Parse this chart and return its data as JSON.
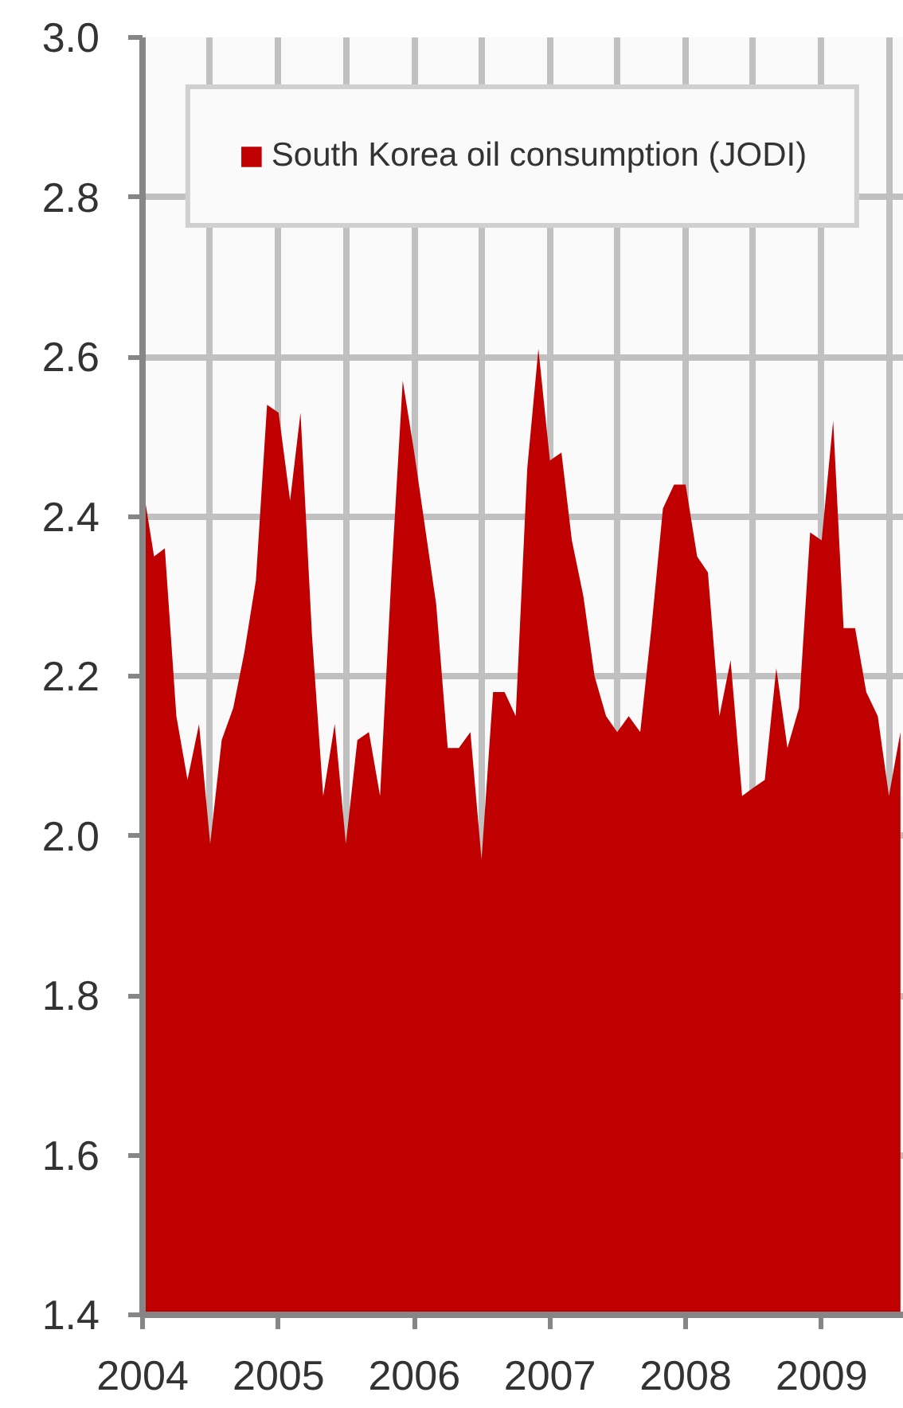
{
  "chart_data": {
    "type": "area",
    "x": [
      "2004-01",
      "2004-02",
      "2004-03",
      "2004-04",
      "2004-05",
      "2004-06",
      "2004-07",
      "2004-08",
      "2004-09",
      "2004-10",
      "2004-11",
      "2004-12",
      "2005-01",
      "2005-02",
      "2005-03",
      "2005-04",
      "2005-05",
      "2005-06",
      "2005-07",
      "2005-08",
      "2005-09",
      "2005-10",
      "2005-11",
      "2005-12",
      "2006-01",
      "2006-02",
      "2006-03",
      "2006-04",
      "2006-05",
      "2006-06",
      "2006-07",
      "2006-08",
      "2006-09",
      "2006-10",
      "2006-11",
      "2006-12",
      "2007-01",
      "2007-02",
      "2007-03",
      "2007-04",
      "2007-05",
      "2007-06",
      "2007-07",
      "2007-08",
      "2007-09",
      "2007-10",
      "2007-11",
      "2007-12",
      "2008-01",
      "2008-02",
      "2008-03",
      "2008-04",
      "2008-05",
      "2008-06",
      "2008-07",
      "2008-08",
      "2008-09",
      "2008-10",
      "2008-11",
      "2008-12",
      "2009-01",
      "2009-02",
      "2009-03",
      "2009-04",
      "2009-05",
      "2009-06",
      "2009-07",
      "2009-08"
    ],
    "series": [
      {
        "name": "South Korea oil consumption (JODI)",
        "color": "#c00000",
        "values": [
          2.44,
          2.35,
          2.36,
          2.15,
          2.07,
          2.14,
          1.99,
          2.12,
          2.16,
          2.23,
          2.32,
          2.54,
          2.53,
          2.42,
          2.53,
          2.25,
          2.05,
          2.14,
          1.99,
          2.12,
          2.13,
          2.05,
          2.33,
          2.57,
          2.48,
          2.38,
          2.29,
          2.11,
          2.11,
          2.13,
          1.97,
          2.18,
          2.18,
          2.15,
          2.46,
          2.61,
          2.47,
          2.48,
          2.37,
          2.3,
          2.2,
          2.15,
          2.13,
          2.15,
          2.13,
          2.26,
          2.41,
          2.44,
          2.44,
          2.35,
          2.33,
          2.15,
          2.22,
          2.05,
          2.06,
          2.07,
          2.21,
          2.11,
          2.16,
          2.38,
          2.37,
          2.52,
          2.26,
          2.26,
          2.18,
          2.15,
          2.05,
          2.13
        ]
      }
    ],
    "xlim": [
      "2004-01",
      "2009-08-10"
    ],
    "ylim": [
      1.4,
      3.0
    ],
    "xticks": [
      "2004",
      {
        "value": "2004-07",
        "label": null
      },
      "2005",
      {
        "value": "2005-07",
        "label": null
      },
      "2006",
      {
        "value": "2006-07",
        "label": null
      },
      "2007",
      {
        "value": "2007-07",
        "label": null
      },
      "2008",
      {
        "value": "2008-07",
        "label": null
      },
      "2009",
      {
        "value": "2009-07",
        "label": null
      }
    ],
    "yticks": [
      1.4,
      1.6,
      1.8,
      {
        "value": 2,
        "label": "2.0"
      },
      2.2,
      2.4,
      2.6,
      2.8,
      {
        "value": 3,
        "label": "3.0"
      }
    ],
    "grid": true,
    "legend": "top"
  }
}
